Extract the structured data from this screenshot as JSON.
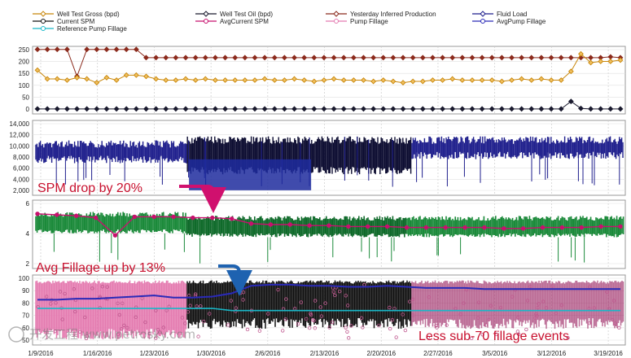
{
  "chart_data": {
    "type": "line",
    "x_labels": [
      "1/9/2016",
      "1/16/2016",
      "1/23/2016",
      "1/30/2016",
      "2/6/2016",
      "2/13/2016",
      "2/20/2016",
      "2/27/2016",
      "3/5/2016",
      "3/12/2016",
      "3/19/2016"
    ],
    "legend": [
      {
        "name": "Well Test Gross (bpd)",
        "color": "#c8860a",
        "marker": "diamond"
      },
      {
        "name": "Well Test Oil (bpd)",
        "color": "#1a1a2e",
        "marker": "diamond"
      },
      {
        "name": "Yesterday Inferred Production",
        "color": "#8b2a1c",
        "marker": "diamond"
      },
      {
        "name": "Fluid Load",
        "color": "#1e1e8c",
        "marker": "diamond"
      },
      {
        "name": "Current SPM",
        "color": "#111111",
        "marker": "circle"
      },
      {
        "name": "AvgCurrent SPM",
        "color": "#c8106e",
        "marker": "circle"
      },
      {
        "name": "Pump Fillage",
        "color": "#e47bb0",
        "marker": "circle"
      },
      {
        "name": "AvgPump Fillage",
        "color": "#2a2ab8",
        "marker": "circle"
      },
      {
        "name": "Reference Pump Fillage",
        "color": "#18b8c8",
        "marker": "circle"
      }
    ],
    "panels": [
      {
        "name": "production",
        "y_ticks": [
          "250",
          "200",
          "150",
          "100",
          "50",
          "0"
        ],
        "ylim": [
          0,
          270
        ],
        "series": [
          {
            "name": "Yesterday Inferred Production",
            "values": [
              258,
              258,
              258,
              258,
              150,
              258,
              258,
              258,
              258,
              258,
              258,
              225,
              225,
              225,
              225,
              225,
              225,
              225,
              225,
              225,
              225,
              225,
              225,
              225,
              225,
              225,
              225,
              225,
              225,
              225,
              225,
              225,
              225,
              225,
              225,
              225,
              225,
              225,
              225,
              225,
              225,
              225,
              225,
              225,
              225,
              225,
              225,
              225,
              225,
              225,
              225,
              225,
              225,
              225,
              225,
              225,
              225,
              225,
              228,
              225
            ]
          },
          {
            "name": "Well Test Gross (bpd)",
            "values": [
              175,
              140,
              140,
              135,
              145,
              140,
              125,
              145,
              135,
              155,
              155,
              150,
              140,
              135,
              135,
              140,
              135,
              140,
              135,
              135,
              135,
              135,
              135,
              140,
              135,
              135,
              140,
              135,
              130,
              135,
              140,
              135,
              135,
              135,
              130,
              135,
              130,
              125,
              130,
              130,
              135,
              135,
              140,
              135,
              135,
              135,
              135,
              130,
              135,
              140,
              135,
              140,
              135,
              135,
              170,
              240,
              205,
              210,
              210,
              215
            ]
          },
          {
            "name": "Well Test Oil (bpd)",
            "values": [
              20,
              20,
              20,
              20,
              20,
              20,
              20,
              20,
              20,
              20,
              20,
              20,
              20,
              20,
              20,
              20,
              20,
              20,
              20,
              20,
              20,
              20,
              20,
              20,
              20,
              20,
              20,
              20,
              20,
              20,
              20,
              20,
              20,
              20,
              20,
              20,
              20,
              20,
              20,
              20,
              20,
              20,
              20,
              20,
              20,
              20,
              20,
              20,
              20,
              20,
              20,
              20,
              20,
              20,
              50,
              22,
              20,
              20,
              20,
              20
            ]
          }
        ]
      },
      {
        "name": "fluid_load",
        "y_ticks": [
          "14,000",
          "12,000",
          "10,000",
          "8,000",
          "6,000",
          "4,000",
          "2,000"
        ],
        "ylim": [
          0,
          15000
        ],
        "series": [
          {
            "name": "Fluid Load",
            "approx_band": [
              7000,
              12000
            ]
          }
        ]
      },
      {
        "name": "spm",
        "y_ticks": [
          "6",
          "4",
          "2"
        ],
        "ylim": [
          0,
          7
        ],
        "series": [
          {
            "name": "AvgCurrent SPM",
            "values": [
              5.6,
              5.5,
              5.4,
              5.2,
              3.4,
              5.3,
              5.3,
              5.3,
              5.2,
              5.2,
              5.1,
              4.6,
              4.5,
              4.5,
              4.4,
              4.4,
              4.3,
              4.3,
              4.3,
              4.2,
              4.2,
              4.2,
              4.2,
              4.2,
              4.1,
              4.1,
              4.2,
              4.2,
              4.2,
              4.3,
              4.3
            ]
          },
          {
            "name": "Current SPM",
            "approx_band": [
              3,
              6
            ]
          }
        ]
      },
      {
        "name": "fillage",
        "y_ticks": [
          "100",
          "90",
          "80",
          "70",
          "60",
          "50"
        ],
        "ylim": [
          40,
          105
        ],
        "series": [
          {
            "name": "AvgPump Fillage",
            "values": [
              82,
              82,
              83,
              83,
              84,
              85,
              86,
              84,
              84,
              85,
              88,
              95,
              96,
              96,
              95,
              95,
              94,
              94,
              95,
              94,
              93,
              93,
              93,
              92,
              92,
              92,
              92,
              92,
              92,
              92,
              92
            ]
          },
          {
            "name": "Reference Pump Fillage",
            "values": [
              74,
              74,
              74,
              74,
              74,
              74,
              74,
              74,
              74,
              74,
              72,
              72,
              72,
              72,
              72,
              72,
              72,
              72,
              72,
              72,
              72,
              72,
              72,
              72,
              72,
              72,
              72,
              72,
              72,
              72,
              72
            ]
          },
          {
            "name": "Pump Fillage",
            "approx_band": [
              50,
              100
            ]
          }
        ]
      }
    ],
    "annotations": [
      {
        "text": "SPM drop by 20%",
        "color": "#c8102e"
      },
      {
        "text": "Avg Fillage up by 13%",
        "color": "#c8102e"
      },
      {
        "text": "Less sub-70 fillage events",
        "color": "#c8102e"
      }
    ],
    "watermark": "开发工程  www.petrosky.com"
  }
}
